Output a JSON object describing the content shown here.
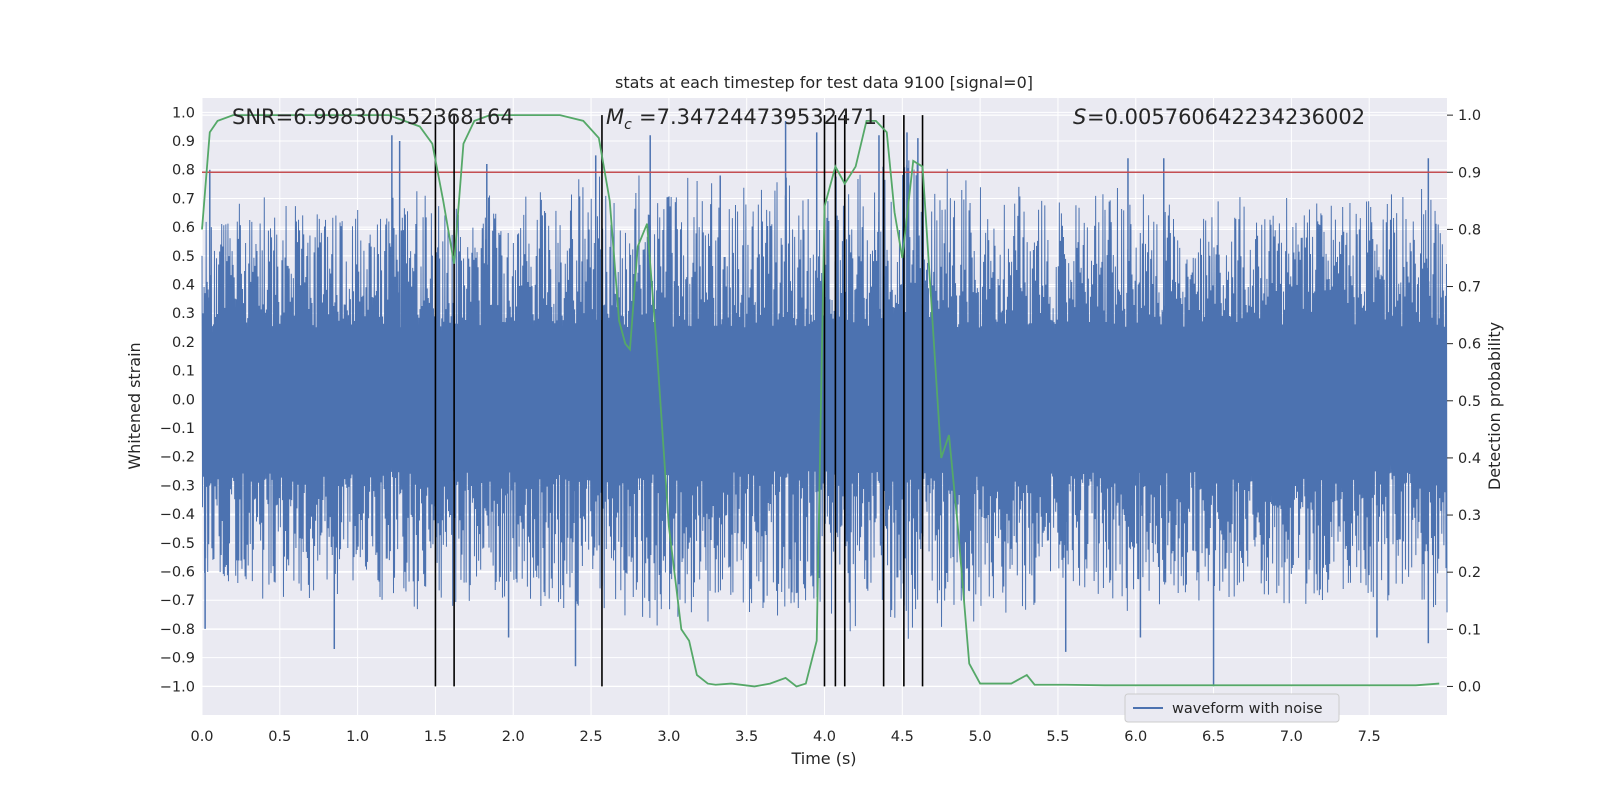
{
  "chart_data": {
    "type": "line",
    "title": "stats at each timestep for test data 9100 [signal=0]",
    "xlabel": "Time (s)",
    "ylabel_left": "Whitened strain",
    "ylabel_right": "Detection probability",
    "xlim": [
      0.0,
      8.0
    ],
    "ylim_left": [
      -1.1,
      1.05
    ],
    "ylim_right": [
      -0.05,
      1.03
    ],
    "x_ticks": [
      0.0,
      0.5,
      1.0,
      1.5,
      2.0,
      2.5,
      3.0,
      3.5,
      4.0,
      4.5,
      5.0,
      5.5,
      6.0,
      6.5,
      7.0,
      7.5
    ],
    "x_tick_labels": [
      "0.0",
      "0.5",
      "1.0",
      "1.5",
      "2.0",
      "2.5",
      "3.0",
      "3.5",
      "4.0",
      "4.5",
      "5.0",
      "5.5",
      "6.0",
      "6.5",
      "7.0",
      "7.5"
    ],
    "y_ticks_left": [
      1.0,
      0.9,
      0.8,
      0.7,
      0.6,
      0.5,
      0.4,
      0.3,
      0.2,
      0.1,
      0.0,
      -0.1,
      -0.2,
      -0.3,
      -0.4,
      -0.5,
      -0.6,
      -0.7,
      -0.8,
      -0.9,
      -1.0
    ],
    "y_tick_labels_left": [
      "1.0",
      "0.9",
      "0.8",
      "0.7",
      "0.6",
      "0.5",
      "0.4",
      "0.3",
      "0.2",
      "0.1",
      "0.0",
      "−0.1",
      "−0.2",
      "−0.3",
      "−0.4",
      "−0.5",
      "−0.6",
      "−0.7",
      "−0.8",
      "−0.9",
      "−1.0"
    ],
    "y_ticks_right": [
      1.0,
      0.9,
      0.8,
      0.7,
      0.6,
      0.5,
      0.4,
      0.3,
      0.2,
      0.1,
      0.0
    ],
    "y_tick_labels_right": [
      "1.0",
      "0.9",
      "0.8",
      "0.7",
      "0.6",
      "0.5",
      "0.4",
      "0.3",
      "0.2",
      "0.1",
      "0.0"
    ],
    "grid": true,
    "annotations": {
      "snr": "SNR=6.998300552368164",
      "mc": "=7.347244739532471",
      "s": "=0.005760642234236002"
    },
    "threshold_right": 0.9,
    "detection_markers_x": [
      1.5,
      1.62,
      2.57,
      4.0,
      4.07,
      4.13,
      4.38,
      4.51,
      4.63
    ],
    "detection_markers_range_right": [
      0.0,
      1.0
    ],
    "series": [
      {
        "name": "waveform with noise",
        "axis": "left",
        "color": "#4c72b0",
        "kind": "dense_noise",
        "core_amplitude": 0.5,
        "upper_envelope_x": [
          0.0,
          0.5,
          1.0,
          1.5,
          2.0,
          2.5,
          3.0,
          3.5,
          4.0,
          4.5,
          5.0,
          5.5,
          6.0,
          6.5,
          7.0,
          7.5,
          8.0
        ],
        "upper_envelope_y": [
          0.65,
          0.72,
          0.68,
          0.75,
          0.7,
          0.78,
          0.8,
          0.75,
          0.8,
          0.85,
          0.78,
          0.72,
          0.75,
          0.7,
          0.72,
          0.7,
          0.75
        ],
        "peaks": [
          {
            "x": 0.02,
            "y": -0.8
          },
          {
            "x": 0.05,
            "y": 0.8
          },
          {
            "x": 0.85,
            "y": -0.87
          },
          {
            "x": 1.22,
            "y": 0.92
          },
          {
            "x": 1.27,
            "y": 0.9
          },
          {
            "x": 1.83,
            "y": 0.82
          },
          {
            "x": 1.97,
            "y": -0.83
          },
          {
            "x": 2.4,
            "y": -0.93
          },
          {
            "x": 2.53,
            "y": 0.85
          },
          {
            "x": 2.88,
            "y": 0.92
          },
          {
            "x": 3.33,
            "y": 0.78
          },
          {
            "x": 3.75,
            "y": 0.97
          },
          {
            "x": 3.95,
            "y": 0.93
          },
          {
            "x": 4.35,
            "y": 0.92
          },
          {
            "x": 4.53,
            "y": 0.93
          },
          {
            "x": 4.6,
            "y": 0.91
          },
          {
            "x": 5.55,
            "y": -0.88
          },
          {
            "x": 6.03,
            "y": -0.83
          },
          {
            "x": 6.5,
            "y": -1.0
          },
          {
            "x": 7.55,
            "y": -0.83
          },
          {
            "x": 7.88,
            "y": -0.85
          },
          {
            "x": 7.88,
            "y": 0.84
          },
          {
            "x": 6.18,
            "y": 0.84
          },
          {
            "x": 5.95,
            "y": 0.84
          }
        ]
      },
      {
        "name": "Detection probability",
        "axis": "right",
        "color": "#55a868",
        "x": [
          0.0,
          0.05,
          0.1,
          0.2,
          0.5,
          1.0,
          1.2,
          1.3,
          1.4,
          1.48,
          1.55,
          1.62,
          1.68,
          1.75,
          1.85,
          2.0,
          2.3,
          2.45,
          2.55,
          2.62,
          2.68,
          2.72,
          2.75,
          2.8,
          2.86,
          2.92,
          3.0,
          3.08,
          3.13,
          3.18,
          3.25,
          3.3,
          3.4,
          3.55,
          3.65,
          3.75,
          3.82,
          3.88,
          3.95,
          4.0,
          4.07,
          4.13,
          4.2,
          4.27,
          4.33,
          4.4,
          4.45,
          4.5,
          4.57,
          4.63,
          4.68,
          4.75,
          4.8,
          4.86,
          4.93,
          5.0,
          5.2,
          5.3,
          5.35,
          5.45,
          5.55,
          5.8,
          6.5,
          7.0,
          7.5,
          7.8,
          7.95
        ],
        "y": [
          0.8,
          0.97,
          0.99,
          1.0,
          1.0,
          1.0,
          1.0,
          0.99,
          0.98,
          0.95,
          0.85,
          0.74,
          0.95,
          0.99,
          1.0,
          1.0,
          1.0,
          0.99,
          0.96,
          0.85,
          0.64,
          0.6,
          0.59,
          0.77,
          0.81,
          0.6,
          0.28,
          0.1,
          0.08,
          0.02,
          0.005,
          0.003,
          0.005,
          0.0,
          0.005,
          0.015,
          0.0,
          0.005,
          0.08,
          0.84,
          0.91,
          0.88,
          0.91,
          0.99,
          0.99,
          0.97,
          0.83,
          0.75,
          0.92,
          0.91,
          0.7,
          0.4,
          0.44,
          0.27,
          0.04,
          0.005,
          0.005,
          0.02,
          0.003,
          0.003,
          0.003,
          0.002,
          0.002,
          0.002,
          0.002,
          0.002,
          0.005
        ]
      },
      {
        "name": "threshold",
        "axis": "right",
        "color": "#c44e52",
        "x": [
          0.0,
          8.0
        ],
        "y": [
          0.9,
          0.9
        ]
      }
    ],
    "legend": {
      "entries": [
        "waveform with noise"
      ],
      "placement": "lower-center-right"
    }
  }
}
